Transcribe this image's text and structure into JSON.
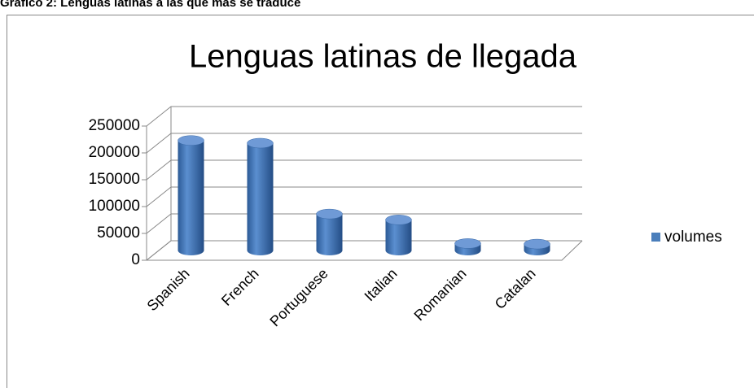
{
  "caption": "Gráfico 2: Lenguas latinas a las que más se traduce",
  "chart_data": {
    "type": "bar3d",
    "title": "Lenguas latinas de llegada",
    "categories": [
      "Spanish",
      "French",
      "Portuguese",
      "Italian",
      "Romanian",
      "Catalan"
    ],
    "series": [
      {
        "name": "volumes",
        "color": "#4a7ebb",
        "values": [
          205000,
          200000,
          68000,
          57000,
          13000,
          12000
        ]
      }
    ],
    "ylim": [
      0,
      250000
    ],
    "yticks": [
      0,
      50000,
      100000,
      150000,
      200000,
      250000
    ],
    "grid": true,
    "legend": "right"
  }
}
